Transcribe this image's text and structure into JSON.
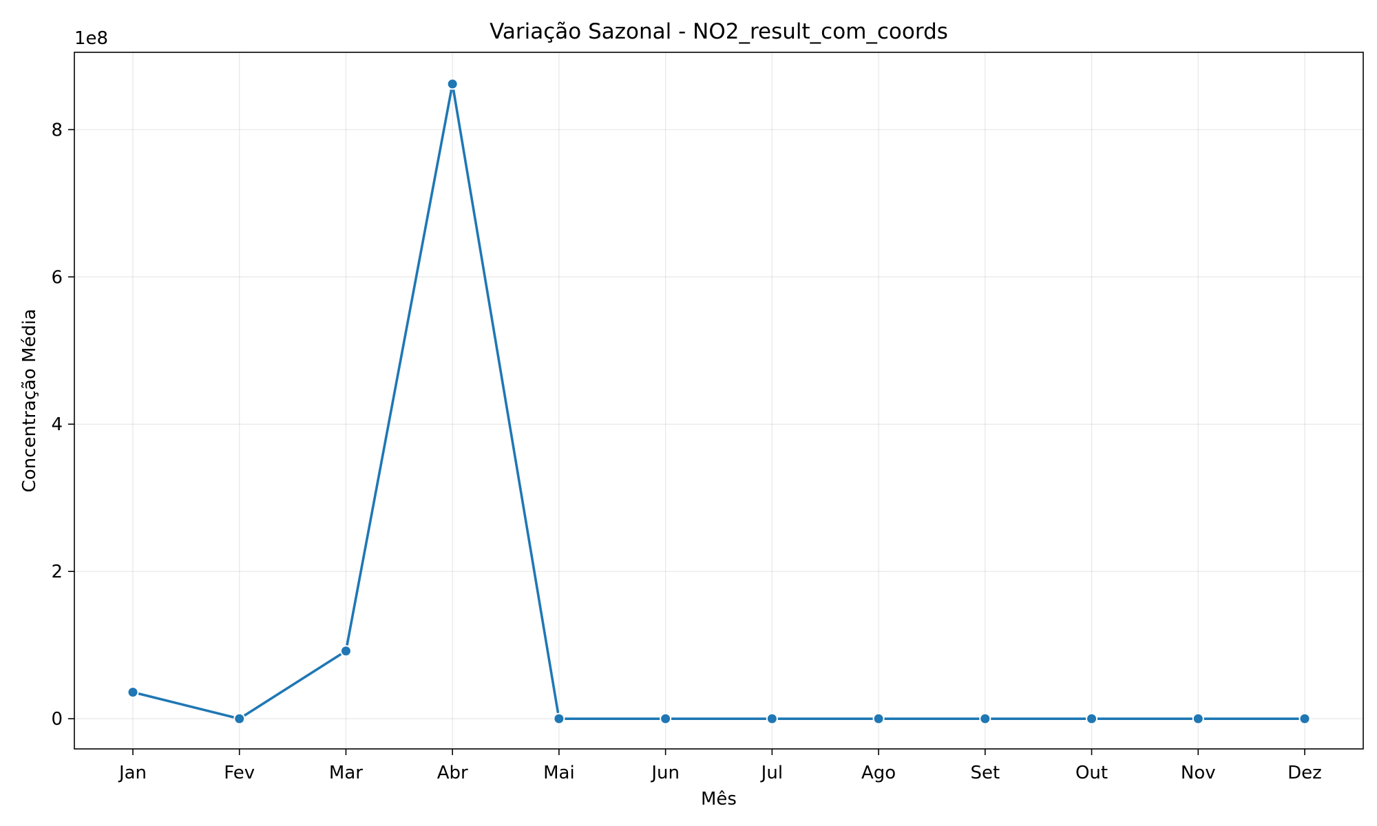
{
  "chart_data": {
    "type": "line",
    "title": "Variação Sazonal - NO2_result_com_coords",
    "xlabel": "Mês",
    "ylabel": "Concentração Média",
    "y_offset_label": "1e8",
    "y_scale_factor": 100000000,
    "categories": [
      "Jan",
      "Fev",
      "Mar",
      "Abr",
      "Mai",
      "Jun",
      "Jul",
      "Ago",
      "Set",
      "Out",
      "Nov",
      "Dez"
    ],
    "series": [
      {
        "color": "#1f77b4",
        "values": [
          36000000,
          0,
          92000000,
          862000000,
          0,
          0,
          0,
          0,
          0,
          0,
          0,
          0
        ]
      }
    ],
    "ylim": [
      -41000000,
      905000000
    ],
    "yticks": [
      0,
      200000000,
      400000000,
      600000000,
      800000000
    ],
    "ytick_labels": [
      "0",
      "2",
      "4",
      "6",
      "8"
    ],
    "grid": true,
    "legend": "none"
  }
}
